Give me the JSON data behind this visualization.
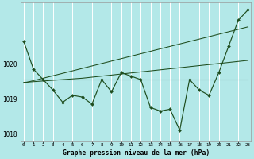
{
  "xlabel_label": "Graphe pression niveau de la mer (hPa)",
  "bg_color": "#b3e8e8",
  "grid_color": "#d0f0f0",
  "line_color": "#1e4d1e",
  "x_values": [
    0,
    1,
    2,
    3,
    4,
    5,
    6,
    7,
    8,
    9,
    10,
    11,
    12,
    13,
    14,
    15,
    16,
    17,
    18,
    19,
    20,
    21,
    22,
    23
  ],
  "main_line": [
    1020.65,
    1019.85,
    1019.55,
    1019.25,
    1018.9,
    1019.1,
    1019.05,
    1018.85,
    1019.55,
    1019.2,
    1019.75,
    1019.65,
    1019.55,
    1018.75,
    1018.65,
    1018.7,
    1018.1,
    1019.55,
    1019.25,
    1019.1,
    1019.75,
    1020.5,
    1021.25,
    1021.55
  ],
  "flat_line": [
    1019.55,
    1019.55,
    1019.55,
    1019.55,
    1019.55,
    1019.55,
    1019.55,
    1019.55,
    1019.55,
    1019.55,
    1019.55,
    1019.55,
    1019.55,
    1019.55,
    1019.55,
    1019.55,
    1019.55,
    1019.55,
    1019.55,
    1019.55,
    1019.55,
    1019.55,
    1019.55,
    1019.55
  ],
  "gradual_line": [
    1019.47,
    1019.49,
    1019.51,
    1019.53,
    1019.55,
    1019.57,
    1019.59,
    1019.62,
    1019.65,
    1019.68,
    1019.71,
    1019.74,
    1019.77,
    1019.8,
    1019.83,
    1019.86,
    1019.89,
    1019.92,
    1019.95,
    1019.98,
    1020.01,
    1020.04,
    1020.07,
    1020.1
  ],
  "steep_line": [
    1019.45,
    1019.52,
    1019.59,
    1019.66,
    1019.73,
    1019.8,
    1019.87,
    1019.94,
    1020.01,
    1020.08,
    1020.15,
    1020.22,
    1020.29,
    1020.36,
    1020.43,
    1020.5,
    1020.57,
    1020.64,
    1020.71,
    1020.78,
    1020.85,
    1020.92,
    1020.99,
    1021.06
  ],
  "ylim": [
    1017.8,
    1021.75
  ],
  "yticks": [
    1018,
    1019,
    1020
  ],
  "xlim": [
    -0.3,
    23.3
  ]
}
